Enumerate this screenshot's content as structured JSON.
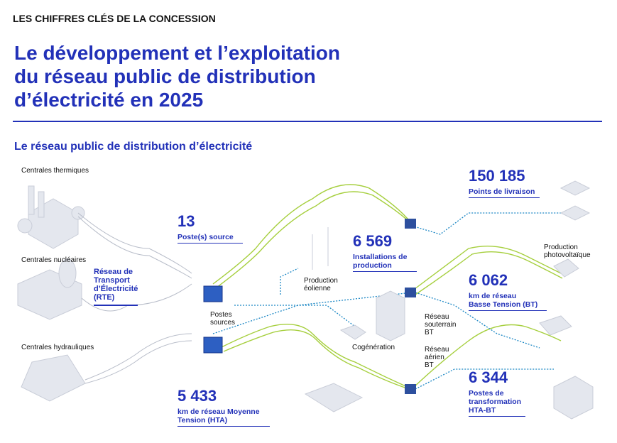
{
  "header": {
    "kicker": "LES CHIFFRES CLÉS DE LA CONCESSION",
    "title": [
      "Le développement et l’exploitation",
      "du réseau public de distribution",
      "d’électricité en 2025"
    ],
    "subtitle": "Le réseau public de distribution d’électricité"
  },
  "labels": {
    "thermal": "Centrales thermiques",
    "nuclear": "Centrales nucléaires",
    "hydro": "Centrales hydrauliques",
    "rte": [
      "Réseau de",
      "Transport",
      "d’Électricité",
      "(RTE)"
    ],
    "substations": [
      "Postes",
      "sources"
    ],
    "wind": [
      "Production",
      "éolienne"
    ],
    "cogeneration": "Cogénération",
    "underground": [
      "Réseau",
      "souterrain",
      "BT"
    ],
    "overhead": [
      "Réseau",
      "aérien",
      "BT"
    ],
    "solar": [
      "Production",
      "photovoltaïque"
    ]
  },
  "stats": [
    {
      "value": "13",
      "label": [
        "Poste(s) source"
      ]
    },
    {
      "value": "6 569",
      "label": [
        "Installations de",
        "production"
      ]
    },
    {
      "value": "150 185",
      "label": [
        "Points de livraison"
      ]
    },
    {
      "value": "6 062",
      "label": [
        "km de réseau",
        "Basse Tension (BT)"
      ]
    },
    {
      "value": "6 344",
      "label": [
        "Postes de",
        "transformation",
        "HTA-BT"
      ]
    },
    {
      "value": "5 433",
      "label": [
        "km de réseau Moyenne",
        "Tension (HTA)"
      ]
    }
  ]
}
